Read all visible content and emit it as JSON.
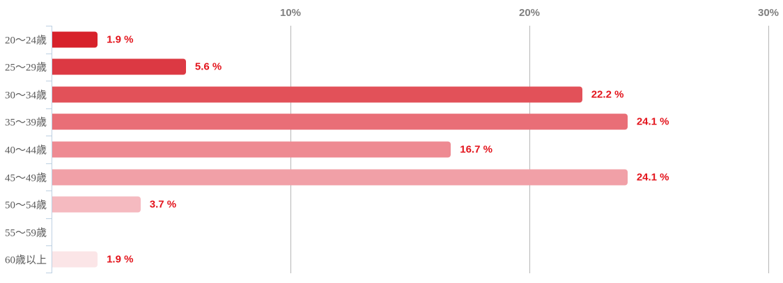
{
  "chart_data": {
    "type": "bar",
    "orientation": "horizontal",
    "title": "",
    "xlabel": "",
    "ylabel": "",
    "categories": [
      "20〜24歳",
      "25〜29歳",
      "30〜34歳",
      "35〜39歳",
      "40〜44歳",
      "45〜49歳",
      "50〜54歳",
      "55〜59歳",
      "60歳以上"
    ],
    "values": [
      1.9,
      5.6,
      22.2,
      24.1,
      16.7,
      24.1,
      3.7,
      0,
      1.9
    ],
    "value_labels": [
      "1.9 %",
      "5.6 %",
      "22.2 %",
      "24.1 %",
      "16.7 %",
      "24.1 %",
      "3.7 %",
      "",
      "1.9 %"
    ],
    "bar_colors": [
      "#d7222b",
      "#dc3943",
      "#e25159",
      "#e96e77",
      "#ee8a92",
      "#f1a0a7",
      "#f5bac0",
      "#f5bac0",
      "#fbe5e7"
    ],
    "x_ticks": [
      "10%",
      "20%",
      "30%"
    ],
    "x_tick_values": [
      10,
      20,
      30
    ],
    "xlim": [
      0,
      30
    ],
    "grid": true,
    "legend": false,
    "colors": {
      "value_label": "#e3141c",
      "category_label": "#595959",
      "axis_tick_label": "#7f7f7f",
      "gridline": "#b5b5b5",
      "axis_line": "#bdd0e2",
      "background": "#ffffff"
    }
  }
}
